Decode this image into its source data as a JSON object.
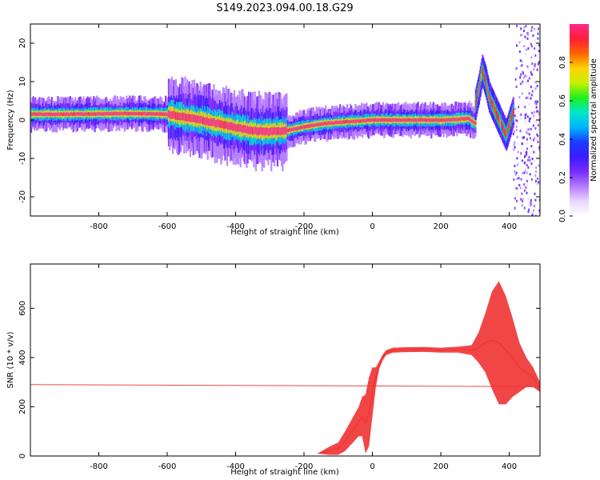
{
  "title": "S149.2023.094.00.18.G29",
  "colors": {
    "snr_line": "#f03232",
    "reference_line": "#e84a4a",
    "axis": "#000000",
    "colormap": [
      "#ffffff",
      "#e8d6ff",
      "#b57cff",
      "#7a2bff",
      "#3b1cff",
      "#1a3cff",
      "#00b4ff",
      "#00e6c8",
      "#1ef01e",
      "#c8f000",
      "#ffd200",
      "#ff6400",
      "#ff1e3c",
      "#ff2a8c"
    ]
  },
  "chart_data": [
    {
      "type": "heatmap",
      "name": "spectrogram",
      "xlabel": "Height of straight line (km)",
      "ylabel": "Frequency (Hz)",
      "xlim": [
        -1000,
        490
      ],
      "ylim": [
        -25,
        25
      ],
      "xticks": [
        -800,
        -600,
        -400,
        -200,
        0,
        200,
        400
      ],
      "yticks": [
        -20,
        -10,
        0,
        10,
        20
      ],
      "colorbar": {
        "label": "Normalized spectral amplitude",
        "range": [
          0,
          1
        ],
        "ticks": [
          "0.0",
          "0.2",
          "0.4",
          "0.6",
          "0.8"
        ]
      },
      "ridge": {
        "x": [
          -1000,
          -900,
          -800,
          -700,
          -600,
          -550,
          -500,
          -450,
          -400,
          -350,
          -300,
          -250,
          -200,
          -150,
          -100,
          -50,
          0,
          50,
          100,
          150,
          200,
          250,
          280,
          300
        ],
        "frequency": [
          1.5,
          1.5,
          1.6,
          1.7,
          1.5,
          0.8,
          0.0,
          -1.0,
          -2.0,
          -2.8,
          -3.0,
          -2.7,
          -1.8,
          -1.0,
          -0.6,
          -0.3,
          0.0,
          0.0,
          0.0,
          0.0,
          0.0,
          0.2,
          0.4,
          -1.0
        ]
      },
      "turbulent_segment": {
        "x": [
          300,
          310,
          320,
          330,
          340,
          350,
          360,
          370,
          380,
          390,
          400,
          410
        ],
        "frequency": [
          4,
          8,
          13,
          10,
          6,
          4,
          2,
          0,
          -2,
          -4,
          -1,
          2
        ]
      }
    },
    {
      "type": "line",
      "name": "snr",
      "xlabel": "Height of straight line (km)",
      "ylabel": "SNR (10 * v/v)",
      "xlim": [
        -1000,
        490
      ],
      "ylim": [
        0,
        780
      ],
      "xticks": [
        -800,
        -600,
        -400,
        -200,
        0,
        200,
        400
      ],
      "yticks": [
        0,
        200,
        400,
        600
      ],
      "reference_line": {
        "x": [
          -1000,
          490
        ],
        "y": [
          290,
          282
        ]
      },
      "series": [
        {
          "x": [
            -160,
            -130,
            -100,
            -80,
            -60,
            -40,
            -30,
            -20,
            -10,
            0,
            10,
            20,
            30,
            40,
            60,
            100,
            150,
            200,
            250,
            290,
            310,
            330,
            350,
            370,
            390,
            410,
            430,
            450,
            470,
            490
          ],
          "y": [
            10,
            20,
            30,
            60,
            100,
            140,
            160,
            130,
            180,
            260,
            320,
            370,
            400,
            420,
            430,
            432,
            433,
            430,
            432,
            430,
            440,
            460,
            470,
            460,
            430,
            400,
            360,
            340,
            320,
            280
          ],
          "spread": [
            0,
            15,
            25,
            40,
            50,
            60,
            80,
            120,
            140,
            100,
            40,
            15,
            12,
            10,
            10,
            10,
            10,
            10,
            12,
            20,
            60,
            120,
            200,
            250,
            220,
            160,
            100,
            60,
            40,
            20
          ]
        }
      ]
    }
  ]
}
